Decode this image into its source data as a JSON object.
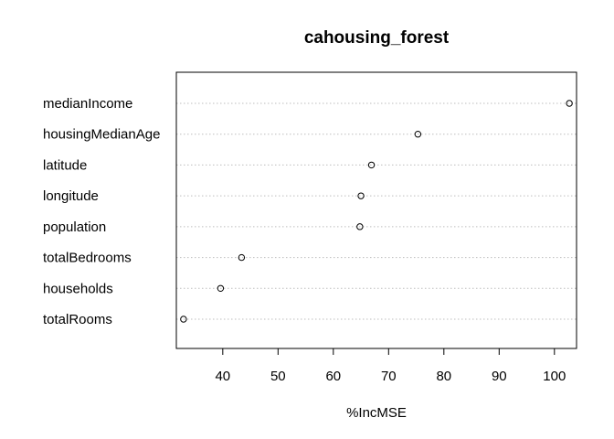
{
  "chart_data": {
    "type": "scatter",
    "title": "cahousing_forest",
    "xlabel": "%IncMSE",
    "ylabel": "",
    "categories": [
      "medianIncome",
      "housingMedianAge",
      "latitude",
      "longitude",
      "population",
      "totalBedrooms",
      "households",
      "totalRooms"
    ],
    "values": [
      102.7,
      75.3,
      66.9,
      65.0,
      64.8,
      43.4,
      39.6,
      32.9
    ],
    "xlim": [
      31.6,
      104.0
    ],
    "xticks": [
      40,
      50,
      60,
      70,
      80,
      90,
      100
    ],
    "grid": "horizontal dotted",
    "marker": "open-circle",
    "colors": {
      "points": "#000000",
      "grid": "#bebebe",
      "frame": "#000000"
    }
  }
}
